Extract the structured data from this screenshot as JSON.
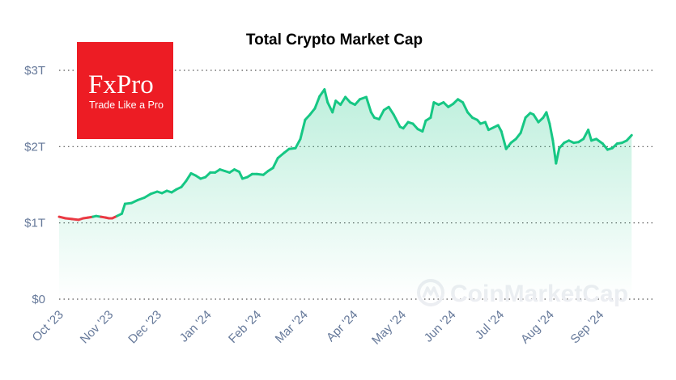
{
  "chart_data": {
    "type": "area",
    "title": "Total Crypto Market Cap",
    "ylabel": "",
    "xlabel": "",
    "ylim": [
      0,
      3
    ],
    "y_ticks": [
      {
        "value": 3,
        "label": "$3T"
      },
      {
        "value": 2,
        "label": "$2T"
      },
      {
        "value": 1,
        "label": "$1T"
      },
      {
        "value": 0,
        "label": "$0"
      }
    ],
    "x_ticks": [
      {
        "date": "2023-10-01",
        "label": "Oct '23"
      },
      {
        "date": "2023-11-01",
        "label": "Nov '23"
      },
      {
        "date": "2023-12-01",
        "label": "Dec '23"
      },
      {
        "date": "2024-01-01",
        "label": "Jan '24"
      },
      {
        "date": "2024-02-01",
        "label": "Feb '24"
      },
      {
        "date": "2024-03-01",
        "label": "Mar '24"
      },
      {
        "date": "2024-04-01",
        "label": "Apr '24"
      },
      {
        "date": "2024-05-01",
        "label": "May '24"
      },
      {
        "date": "2024-06-01",
        "label": "Jun '24"
      },
      {
        "date": "2024-07-01",
        "label": "Jul '24"
      },
      {
        "date": "2024-08-01",
        "label": "Aug '24"
      },
      {
        "date": "2024-09-01",
        "label": "Sep '24"
      }
    ],
    "xlim": [
      "2023-10-01",
      "2024-10-05"
    ],
    "grid": "horizontal dotted",
    "colors": {
      "up": "#16c784",
      "down": "#ea3943",
      "fill_top": "#16c784"
    },
    "series": [
      {
        "points": [
          [
            "2023-10-01",
            1.08
          ],
          [
            "2023-10-05",
            1.06
          ],
          [
            "2023-10-09",
            1.05
          ],
          [
            "2023-10-13",
            1.04
          ],
          [
            "2023-10-16",
            1.06
          ],
          [
            "2023-10-19",
            1.07
          ],
          [
            "2023-10-22",
            1.08
          ],
          [
            "2023-10-24",
            1.09
          ],
          [
            "2023-10-27",
            1.08
          ],
          [
            "2023-10-30",
            1.07
          ],
          [
            "2023-11-01",
            1.06
          ],
          [
            "2023-11-03",
            1.06
          ],
          [
            "2023-11-06",
            1.09
          ],
          [
            "2023-11-09",
            1.12
          ],
          [
            "2023-11-11",
            1.25
          ],
          [
            "2023-11-15",
            1.26
          ],
          [
            "2023-11-19",
            1.3
          ],
          [
            "2023-11-23",
            1.33
          ],
          [
            "2023-11-27",
            1.38
          ],
          [
            "2023-12-01",
            1.41
          ],
          [
            "2023-12-04",
            1.39
          ],
          [
            "2023-12-07",
            1.42
          ],
          [
            "2023-12-10",
            1.4
          ],
          [
            "2023-12-13",
            1.44
          ],
          [
            "2023-12-16",
            1.47
          ],
          [
            "2023-12-19",
            1.55
          ],
          [
            "2023-12-22",
            1.65
          ],
          [
            "2023-12-25",
            1.62
          ],
          [
            "2023-12-28",
            1.58
          ],
          [
            "2023-12-31",
            1.6
          ],
          [
            "2024-01-03",
            1.66
          ],
          [
            "2024-01-06",
            1.66
          ],
          [
            "2024-01-09",
            1.7
          ],
          [
            "2024-01-12",
            1.68
          ],
          [
            "2024-01-15",
            1.66
          ],
          [
            "2024-01-18",
            1.7
          ],
          [
            "2024-01-21",
            1.67
          ],
          [
            "2024-01-23",
            1.58
          ],
          [
            "2024-01-26",
            1.6
          ],
          [
            "2024-01-29",
            1.64
          ],
          [
            "2024-02-01",
            1.64
          ],
          [
            "2024-02-05",
            1.63
          ],
          [
            "2024-02-08",
            1.68
          ],
          [
            "2024-02-11",
            1.72
          ],
          [
            "2024-02-14",
            1.85
          ],
          [
            "2024-02-18",
            1.92
          ],
          [
            "2024-02-21",
            1.97
          ],
          [
            "2024-02-25",
            1.98
          ],
          [
            "2024-02-28",
            2.1
          ],
          [
            "2024-03-02",
            2.35
          ],
          [
            "2024-03-05",
            2.42
          ],
          [
            "2024-03-08",
            2.5
          ],
          [
            "2024-03-11",
            2.66
          ],
          [
            "2024-03-14",
            2.75
          ],
          [
            "2024-03-16",
            2.58
          ],
          [
            "2024-03-19",
            2.45
          ],
          [
            "2024-03-21",
            2.6
          ],
          [
            "2024-03-24",
            2.55
          ],
          [
            "2024-03-27",
            2.65
          ],
          [
            "2024-03-30",
            2.58
          ],
          [
            "2024-04-02",
            2.55
          ],
          [
            "2024-04-05",
            2.62
          ],
          [
            "2024-04-09",
            2.65
          ],
          [
            "2024-04-12",
            2.45
          ],
          [
            "2024-04-14",
            2.38
          ],
          [
            "2024-04-17",
            2.36
          ],
          [
            "2024-04-20",
            2.48
          ],
          [
            "2024-04-23",
            2.52
          ],
          [
            "2024-04-26",
            2.42
          ],
          [
            "2024-04-30",
            2.26
          ],
          [
            "2024-05-02",
            2.24
          ],
          [
            "2024-05-05",
            2.32
          ],
          [
            "2024-05-08",
            2.3
          ],
          [
            "2024-05-11",
            2.23
          ],
          [
            "2024-05-14",
            2.2
          ],
          [
            "2024-05-16",
            2.34
          ],
          [
            "2024-05-19",
            2.38
          ],
          [
            "2024-05-21",
            2.58
          ],
          [
            "2024-05-24",
            2.55
          ],
          [
            "2024-05-27",
            2.58
          ],
          [
            "2024-05-30",
            2.52
          ],
          [
            "2024-06-02",
            2.56
          ],
          [
            "2024-06-05",
            2.62
          ],
          [
            "2024-06-08",
            2.58
          ],
          [
            "2024-06-11",
            2.45
          ],
          [
            "2024-06-14",
            2.38
          ],
          [
            "2024-06-17",
            2.35
          ],
          [
            "2024-06-19",
            2.3
          ],
          [
            "2024-06-22",
            2.32
          ],
          [
            "2024-06-24",
            2.22
          ],
          [
            "2024-06-27",
            2.25
          ],
          [
            "2024-06-30",
            2.28
          ],
          [
            "2024-07-02",
            2.2
          ],
          [
            "2024-07-05",
            1.97
          ],
          [
            "2024-07-08",
            2.05
          ],
          [
            "2024-07-11",
            2.1
          ],
          [
            "2024-07-14",
            2.18
          ],
          [
            "2024-07-17",
            2.38
          ],
          [
            "2024-07-20",
            2.44
          ],
          [
            "2024-07-22",
            2.42
          ],
          [
            "2024-07-25",
            2.32
          ],
          [
            "2024-07-28",
            2.38
          ],
          [
            "2024-07-30",
            2.45
          ],
          [
            "2024-08-01",
            2.3
          ],
          [
            "2024-08-03",
            2.08
          ],
          [
            "2024-08-05",
            1.78
          ],
          [
            "2024-08-07",
            1.98
          ],
          [
            "2024-08-10",
            2.05
          ],
          [
            "2024-08-13",
            2.08
          ],
          [
            "2024-08-16",
            2.05
          ],
          [
            "2024-08-19",
            2.06
          ],
          [
            "2024-08-22",
            2.1
          ],
          [
            "2024-08-25",
            2.22
          ],
          [
            "2024-08-27",
            2.08
          ],
          [
            "2024-08-30",
            2.1
          ],
          [
            "2024-09-03",
            2.04
          ],
          [
            "2024-09-06",
            1.96
          ],
          [
            "2024-09-09",
            1.98
          ],
          [
            "2024-09-12",
            2.04
          ],
          [
            "2024-09-15",
            2.05
          ],
          [
            "2024-09-18",
            2.08
          ],
          [
            "2024-09-21",
            2.15
          ]
        ]
      }
    ]
  },
  "logo": {
    "brand": "FxPro",
    "tagline": "Trade Like a Pro",
    "color": "#ed1c24"
  },
  "watermark": {
    "text": "CoinMarketCap",
    "icon": "coinmarketcap-logo-icon"
  }
}
